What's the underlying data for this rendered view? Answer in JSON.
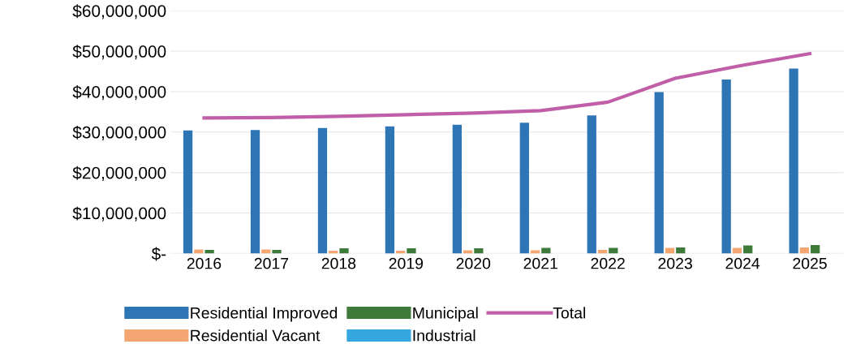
{
  "chart_data": {
    "type": "bar",
    "categories": [
      "2016",
      "2017",
      "2018",
      "2019",
      "2020",
      "2021",
      "2022",
      "2023",
      "2024",
      "2025"
    ],
    "series": [
      {
        "name": "Residential Improved",
        "color": "#2e75b6",
        "values": [
          30400000,
          30500000,
          31000000,
          31400000,
          31800000,
          32300000,
          34100000,
          39900000,
          43000000,
          45700000
        ]
      },
      {
        "name": "Residential Vacant",
        "color": "#f4a672",
        "values": [
          1000000,
          1000000,
          700000,
          700000,
          800000,
          800000,
          900000,
          1400000,
          1400000,
          1500000
        ]
      },
      {
        "name": "Municipal",
        "color": "#3e7a3a",
        "values": [
          900000,
          900000,
          1300000,
          1300000,
          1300000,
          1400000,
          1400000,
          1500000,
          2000000,
          2100000
        ]
      },
      {
        "name": "Industrial",
        "color": "#35a7e0",
        "values": [
          0,
          0,
          0,
          0,
          0,
          0,
          0,
          0,
          0,
          0
        ]
      },
      {
        "name": "Total",
        "type": "line",
        "color": "#c05fa8",
        "values": [
          33500000,
          33600000,
          33900000,
          34300000,
          34700000,
          35300000,
          37400000,
          43300000,
          46500000,
          49400000
        ]
      }
    ],
    "ylim": [
      0,
      60000000
    ],
    "yticks": [
      {
        "value": 0,
        "label": "$-"
      },
      {
        "value": 10000000,
        "label": "$10,000,000"
      },
      {
        "value": 20000000,
        "label": "$20,000,000"
      },
      {
        "value": 30000000,
        "label": "$30,000,000"
      },
      {
        "value": 40000000,
        "label": "$40,000,000"
      },
      {
        "value": 50000000,
        "label": "$50,000,000"
      },
      {
        "value": 60000000,
        "label": "$60,000,000"
      }
    ],
    "grid": "y",
    "legend": "bottom",
    "marker": "none",
    "line_style": "solid"
  }
}
